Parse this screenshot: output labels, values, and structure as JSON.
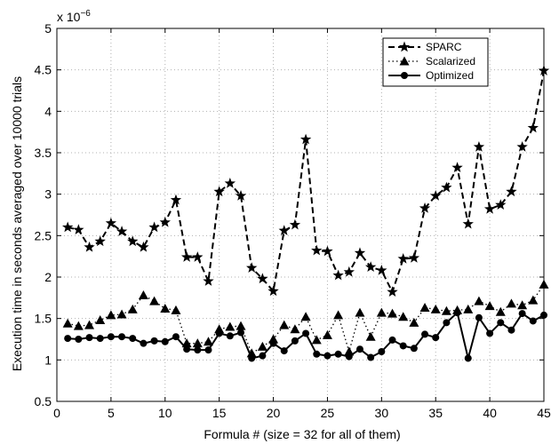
{
  "chart_data": {
    "type": "line",
    "title": "",
    "xlabel": "Formula # (size = 32 for all of them)",
    "ylabel": "Execution time in seconds averaged over 10000 trials",
    "y_exponent_label": "x 10",
    "y_exponent_power": "−6",
    "xlim": [
      0,
      45
    ],
    "ylim": [
      0.5,
      5
    ],
    "grid": true,
    "legend_position": "top-right",
    "x_ticks": [
      0,
      5,
      10,
      15,
      20,
      25,
      30,
      35,
      40,
      45
    ],
    "y_ticks": [
      0.5,
      1,
      1.5,
      2,
      2.5,
      3,
      3.5,
      4,
      4.5,
      5
    ],
    "x": [
      1,
      2,
      3,
      4,
      5,
      6,
      7,
      8,
      9,
      10,
      11,
      12,
      13,
      14,
      15,
      16,
      17,
      18,
      19,
      20,
      21,
      22,
      23,
      24,
      25,
      26,
      27,
      28,
      29,
      30,
      31,
      32,
      33,
      34,
      35,
      36,
      37,
      38,
      39,
      40,
      41,
      42,
      43,
      44,
      45
    ],
    "series": [
      {
        "name": "SPARC",
        "marker": "star",
        "line_style": "dashed",
        "values": [
          2.6,
          2.57,
          2.36,
          2.43,
          2.65,
          2.55,
          2.43,
          2.36,
          2.6,
          2.66,
          2.93,
          2.24,
          2.24,
          1.95,
          3.03,
          3.13,
          2.98,
          2.11,
          1.98,
          1.83,
          2.56,
          2.63,
          3.66,
          2.32,
          2.31,
          2.02,
          2.06,
          2.29,
          2.12,
          2.08,
          1.82,
          2.22,
          2.23,
          2.83,
          2.98,
          3.08,
          3.32,
          2.64,
          3.57,
          2.82,
          2.87,
          3.03,
          3.57,
          3.8,
          4.49
        ]
      },
      {
        "name": "Scalarized",
        "marker": "triangle",
        "line_style": "dotted",
        "values": [
          1.44,
          1.41,
          1.42,
          1.48,
          1.54,
          1.55,
          1.61,
          1.78,
          1.71,
          1.62,
          1.6,
          1.2,
          1.2,
          1.22,
          1.37,
          1.4,
          1.41,
          1.08,
          1.16,
          1.25,
          1.42,
          1.37,
          1.52,
          1.24,
          1.3,
          1.54,
          1.1,
          1.57,
          1.28,
          1.57,
          1.56,
          1.52,
          1.45,
          1.63,
          1.61,
          1.59,
          1.6,
          1.61,
          1.71,
          1.65,
          1.58,
          1.68,
          1.66,
          1.72,
          1.91
        ]
      },
      {
        "name": "Optimized",
        "marker": "circle",
        "line_style": "solid",
        "values": [
          1.26,
          1.25,
          1.27,
          1.26,
          1.28,
          1.28,
          1.26,
          1.2,
          1.23,
          1.22,
          1.28,
          1.13,
          1.12,
          1.12,
          1.32,
          1.29,
          1.33,
          1.02,
          1.05,
          1.2,
          1.11,
          1.23,
          1.32,
          1.07,
          1.05,
          1.07,
          1.04,
          1.13,
          1.03,
          1.1,
          1.24,
          1.17,
          1.14,
          1.31,
          1.27,
          1.45,
          1.57,
          1.02,
          1.51,
          1.32,
          1.45,
          1.36,
          1.56,
          1.47,
          1.54
        ]
      }
    ],
    "colors": {
      "line": "#000000",
      "grid": "#b0b0b0"
    }
  }
}
